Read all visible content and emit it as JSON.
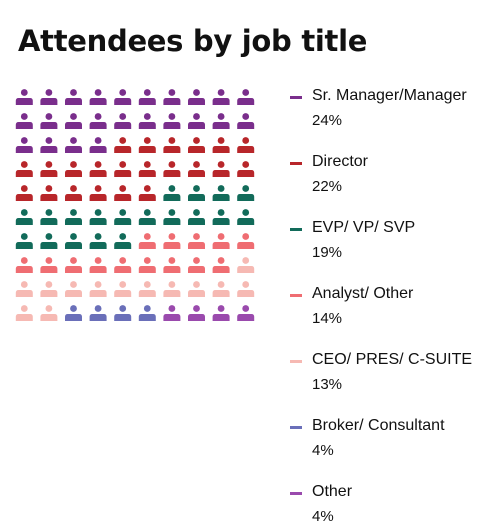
{
  "title": "Attendees by job title",
  "chart_data": {
    "type": "waffle",
    "unit": "%",
    "total_icons": 100,
    "categories": [
      {
        "name": "Sr. Manager/Manager",
        "value": 24,
        "label": "24%",
        "color": "#7a2e8c"
      },
      {
        "name": "Director",
        "value": 22,
        "label": "22%",
        "color": "#b8262a"
      },
      {
        "name": "EVP/ VP/ SVP",
        "value": 19,
        "label": "19%",
        "color": "#126b5a"
      },
      {
        "name": "Analyst/ Other",
        "value": 14,
        "label": "14%",
        "color": "#ef6d72"
      },
      {
        "name": "CEO/ PRES/ C-SUITE",
        "value": 13,
        "label": "13%",
        "color": "#f6b9b3"
      },
      {
        "name": "Broker/ Consultant",
        "value": 4,
        "label": "4%",
        "color": "#6a6fb9"
      },
      {
        "name": "Other",
        "value": 4,
        "label": "4%",
        "color": "#9a4aad"
      }
    ],
    "legend_position": "right"
  }
}
